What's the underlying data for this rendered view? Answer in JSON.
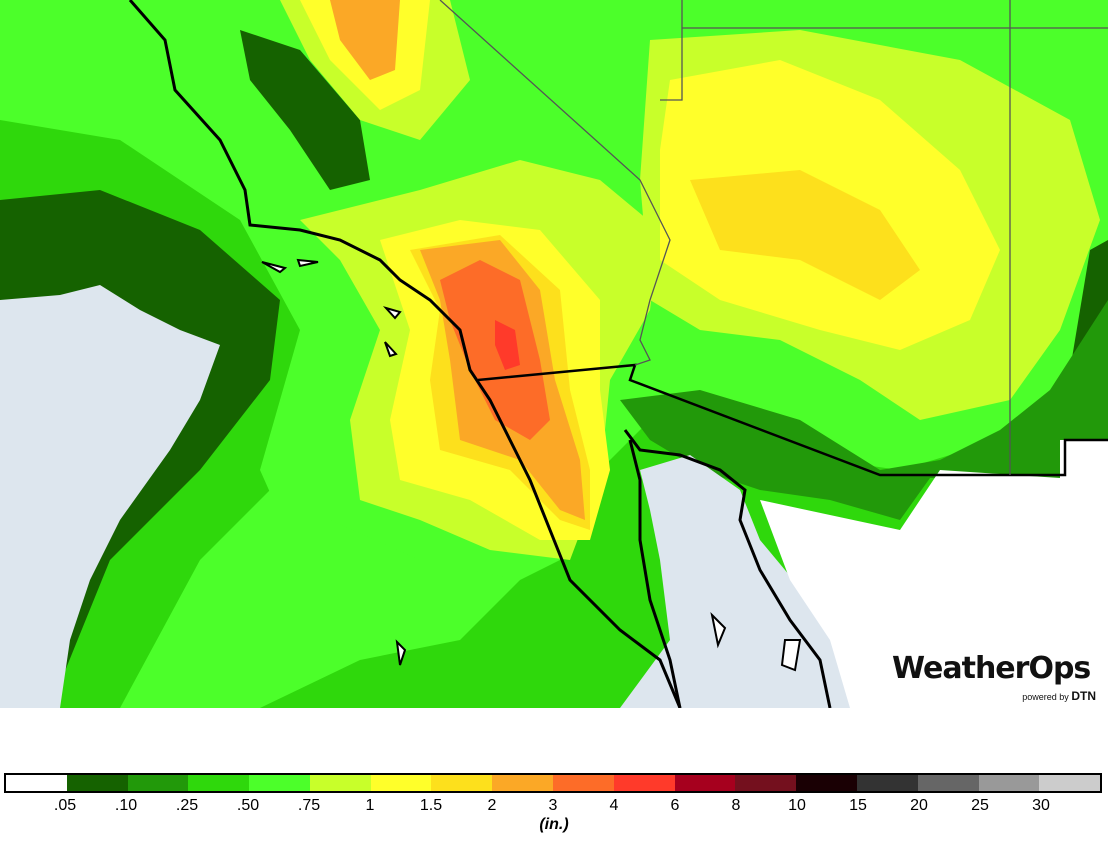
{
  "map": {
    "colors": {
      "ocean": "#dde6ee",
      "land_base": "#2fd80c",
      "border": "#000000",
      "state_line": "#555555"
    }
  },
  "logo": {
    "brand": "WeatherOps",
    "powered_by": "powered by",
    "partner": "DTN"
  },
  "legend": {
    "unit": "(in.)",
    "colors": [
      "#ffffff",
      "#156200",
      "#22990a",
      "#2fd80c",
      "#4cff2a",
      "#c8ff2a",
      "#ffff2a",
      "#fde01c",
      "#fba826",
      "#fd6c28",
      "#ff3a2a",
      "#a6001e",
      "#74101e",
      "#1a0004",
      "#333333",
      "#666666",
      "#999999",
      "#cccccc"
    ],
    "labels": [
      ".05",
      ".10",
      ".25",
      ".50",
      ".75",
      "1",
      "1.5",
      "2",
      "3",
      "4",
      "6",
      "8",
      "10",
      "15",
      "20",
      "25",
      "30"
    ]
  }
}
